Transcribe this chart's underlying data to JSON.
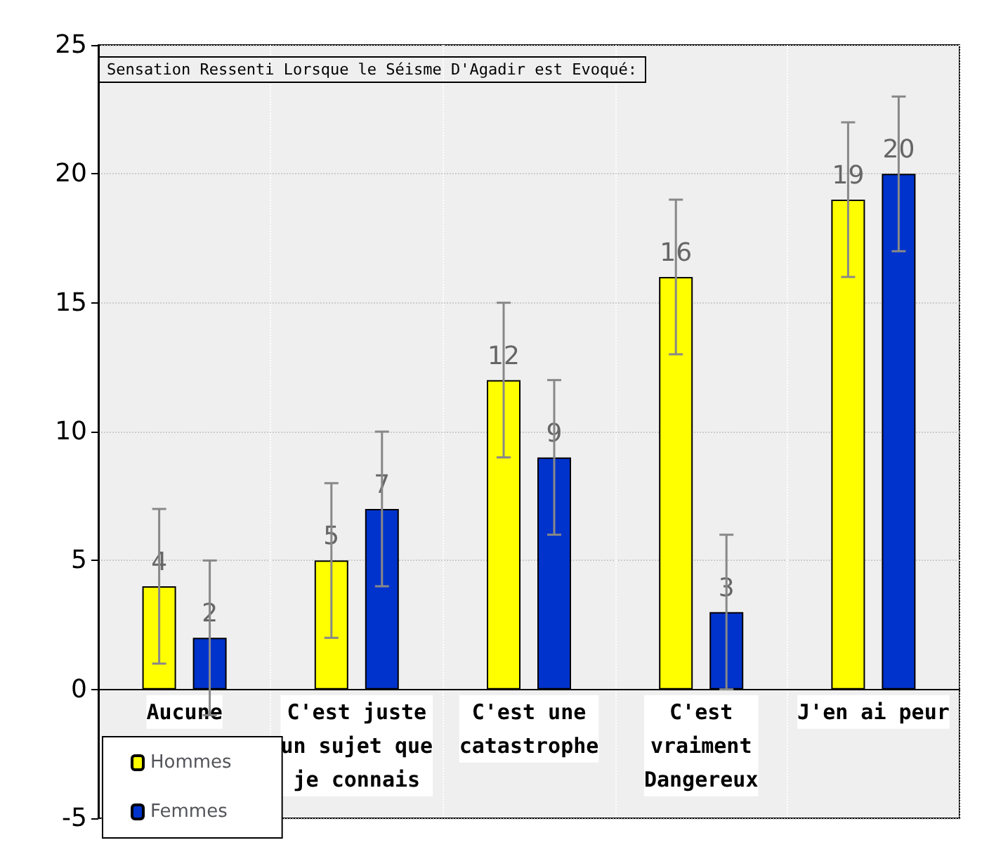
{
  "chart_data": {
    "type": "bar",
    "title": "Sensation Ressenti Lorsque le Séisme D'Agadir est Evoqué:",
    "categories": [
      "Aucune",
      "C'est juste\nun sujet que\nje connais",
      "C'est une\ncatastrophe",
      "C'est\nvraiment\nDangereux",
      "J'en ai peur"
    ],
    "series": [
      {
        "name": "Hommes",
        "color": "#ffff00",
        "values": [
          4,
          5,
          12,
          16,
          19
        ],
        "errors": [
          3,
          3,
          3,
          3,
          3
        ]
      },
      {
        "name": "Femmes",
        "color": "#0033cc",
        "values": [
          2,
          7,
          9,
          3,
          20
        ],
        "errors": [
          3,
          3,
          3,
          3,
          3
        ]
      }
    ],
    "ylim": [
      -5,
      25
    ],
    "yticks": [
      -5,
      0,
      5,
      10,
      15,
      20,
      25
    ],
    "grid": true,
    "legend": "bottom left",
    "data_labels": true
  }
}
